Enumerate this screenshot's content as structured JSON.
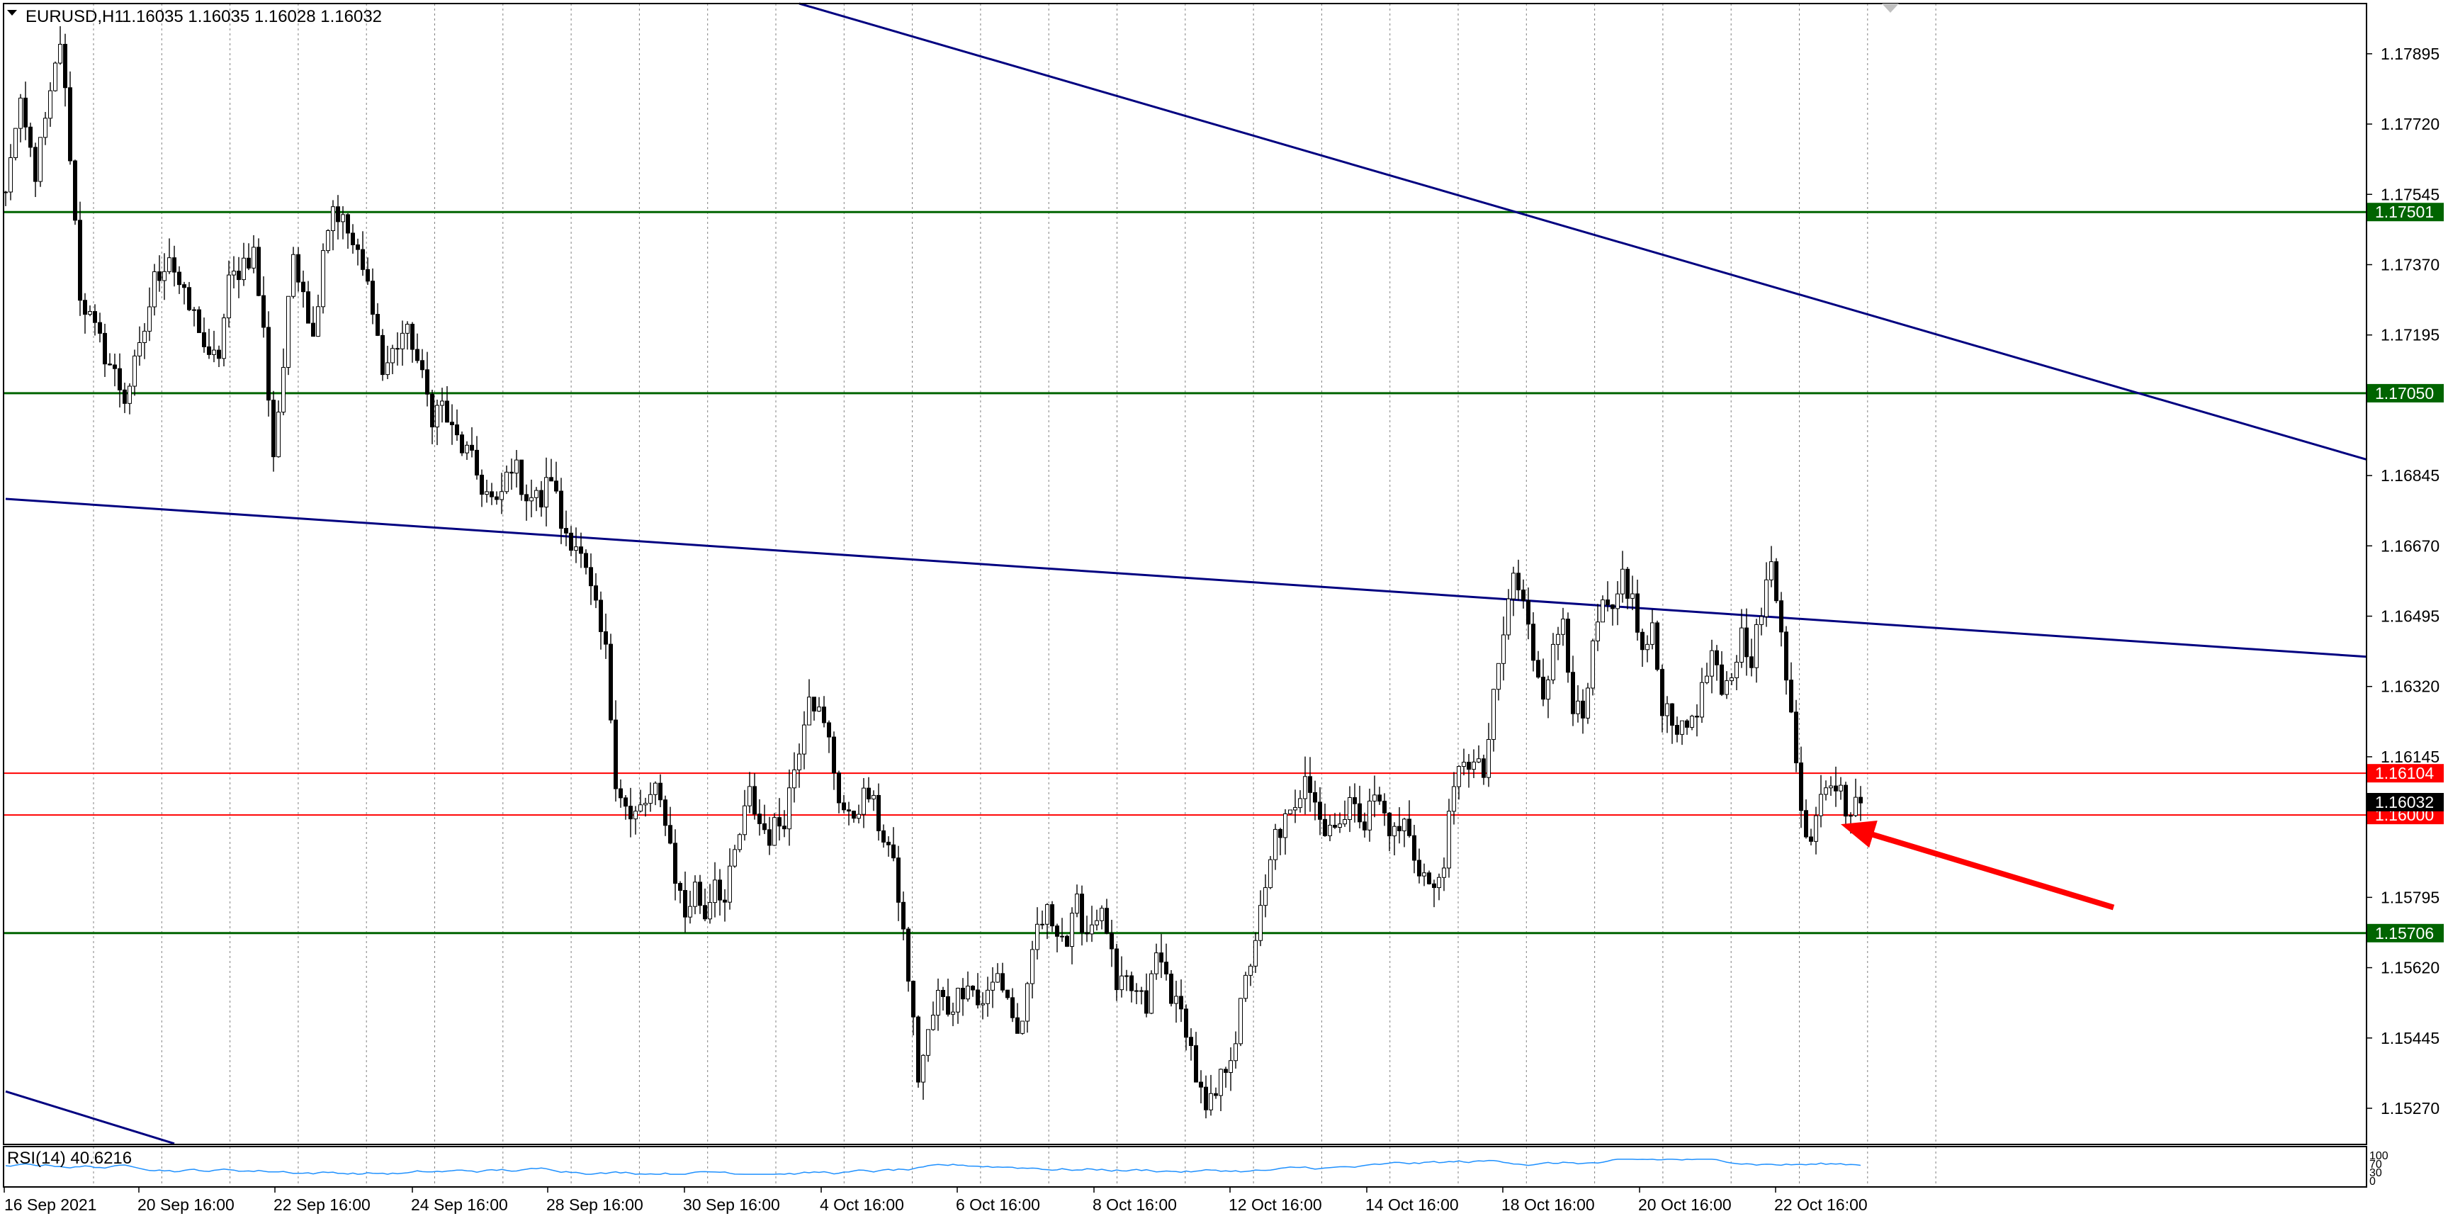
{
  "header": {
    "symbol": "EURUSD,H1",
    "ohlc": "1.16035 1.16035 1.16028 1.16032"
  },
  "rsi_label": "RSI(14) 40.6216",
  "rsi_scale": [
    "100",
    "70",
    "30",
    "0"
  ],
  "colors": {
    "support_green": "#006400",
    "red_line": "#ff0000",
    "trendline_blue": "#000080",
    "rsi_line": "#1e90ff",
    "grid": "#808080"
  },
  "chart_data": {
    "type": "candlestick",
    "timeframe": "H1",
    "ylim": [
      1.1518,
      1.1802
    ],
    "y_ticks": [
      1.17895,
      1.1772,
      1.17545,
      1.1737,
      1.17195,
      1.16845,
      1.1667,
      1.16495,
      1.1632,
      1.16145,
      1.15795,
      1.1562,
      1.15445,
      1.1527
    ],
    "x_tick_labels": [
      "16 Sep 2021",
      "20 Sep 16:00",
      "22 Sep 16:00",
      "24 Sep 16:00",
      "28 Sep 16:00",
      "30 Sep 16:00",
      "4 Oct 16:00",
      "6 Oct 16:00",
      "8 Oct 16:00",
      "12 Oct 16:00",
      "14 Oct 16:00",
      "18 Oct 16:00",
      "20 Oct 16:00",
      "22 Oct 16:00"
    ],
    "price_path": [
      [
        0,
        1.1754
      ],
      [
        1,
        1.1765
      ],
      [
        3,
        1.1775
      ],
      [
        6,
        1.176
      ],
      [
        9,
        1.1778
      ],
      [
        11,
        1.1793
      ],
      [
        13,
        1.1765
      ],
      [
        15,
        1.173
      ],
      [
        18,
        1.172
      ],
      [
        20,
        1.1715
      ],
      [
        24,
        1.1704
      ],
      [
        27,
        1.1715
      ],
      [
        30,
        1.1733
      ],
      [
        33,
        1.174
      ],
      [
        36,
        1.1728
      ],
      [
        39,
        1.1722
      ],
      [
        41,
        1.1712
      ],
      [
        43,
        1.1715
      ],
      [
        45,
        1.1732
      ],
      [
        48,
        1.1738
      ],
      [
        50,
        1.174
      ],
      [
        52,
        1.172
      ],
      [
        54,
        1.169
      ],
      [
        56,
        1.1712
      ],
      [
        58,
        1.174
      ],
      [
        60,
        1.1732
      ],
      [
        62,
        1.1718
      ],
      [
        64,
        1.1742
      ],
      [
        66,
        1.1752
      ],
      [
        69,
        1.1745
      ],
      [
        72,
        1.1735
      ],
      [
        74,
        1.1728
      ],
      [
        76,
        1.171
      ],
      [
        78,
        1.1715
      ],
      [
        80,
        1.172
      ],
      [
        82,
        1.1718
      ],
      [
        84,
        1.1708
      ],
      [
        86,
        1.17
      ],
      [
        88,
        1.1702
      ],
      [
        90,
        1.1695
      ],
      [
        93,
        1.169
      ],
      [
        96,
        1.1682
      ],
      [
        99,
        1.1676
      ],
      [
        102,
        1.1688
      ],
      [
        105,
        1.168
      ],
      [
        108,
        1.1678
      ],
      [
        110,
        1.1685
      ],
      [
        112,
        1.1672
      ],
      [
        115,
        1.1668
      ],
      [
        118,
        1.1655
      ],
      [
        121,
        1.164
      ],
      [
        123,
        1.161
      ],
      [
        126,
        1.1598
      ],
      [
        129,
        1.1603
      ],
      [
        131,
        1.1605
      ],
      [
        133,
        1.16
      ],
      [
        135,
        1.1585
      ],
      [
        137,
        1.1575
      ],
      [
        139,
        1.1582
      ],
      [
        141,
        1.1575
      ],
      [
        143,
        1.1585
      ],
      [
        145,
        1.1578
      ],
      [
        147,
        1.159
      ],
      [
        150,
        1.1605
      ],
      [
        152,
        1.1598
      ],
      [
        154,
        1.1595
      ],
      [
        157,
        1.16
      ],
      [
        160,
        1.1618
      ],
      [
        162,
        1.1632
      ],
      [
        164,
        1.1625
      ],
      [
        166,
        1.1618
      ],
      [
        168,
        1.1605
      ],
      [
        170,
        1.1598
      ],
      [
        172,
        1.1603
      ],
      [
        174,
        1.1605
      ],
      [
        176,
        1.1598
      ],
      [
        178,
        1.1592
      ],
      [
        180,
        1.158
      ],
      [
        182,
        1.156
      ],
      [
        184,
        1.1535
      ],
      [
        186,
        1.1545
      ],
      [
        188,
        1.1555
      ],
      [
        190,
        1.1552
      ],
      [
        192,
        1.1555
      ],
      [
        194,
        1.156
      ],
      [
        196,
        1.1553
      ],
      [
        198,
        1.1555
      ],
      [
        200,
        1.156
      ],
      [
        202,
        1.1555
      ],
      [
        204,
        1.1545
      ],
      [
        206,
        1.1555
      ],
      [
        208,
        1.1572
      ],
      [
        210,
        1.1575
      ],
      [
        212,
        1.1573
      ],
      [
        214,
        1.1568
      ],
      [
        216,
        1.1577
      ],
      [
        218,
        1.1571
      ],
      [
        220,
        1.1576
      ],
      [
        222,
        1.1572
      ],
      [
        224,
        1.1555
      ],
      [
        226,
        1.1558
      ],
      [
        228,
        1.1555
      ],
      [
        230,
        1.1552
      ],
      [
        232,
        1.1565
      ],
      [
        234,
        1.156
      ],
      [
        236,
        1.1552
      ],
      [
        238,
        1.1548
      ],
      [
        240,
        1.1535
      ],
      [
        242,
        1.1525
      ],
      [
        244,
        1.153
      ],
      [
        246,
        1.1538
      ],
      [
        248,
        1.1545
      ],
      [
        250,
        1.1558
      ],
      [
        252,
        1.157
      ],
      [
        254,
        1.158
      ],
      [
        256,
        1.1595
      ],
      [
        258,
        1.1598
      ],
      [
        260,
        1.16
      ],
      [
        262,
        1.1612
      ],
      [
        264,
        1.1605
      ],
      [
        266,
        1.1595
      ],
      [
        268,
        1.16
      ],
      [
        270,
        1.1598
      ],
      [
        272,
        1.1605
      ],
      [
        274,
        1.1598
      ],
      [
        276,
        1.1605
      ],
      [
        278,
        1.16
      ],
      [
        280,
        1.1595
      ],
      [
        282,
        1.1598
      ],
      [
        284,
        1.159
      ],
      [
        286,
        1.1585
      ],
      [
        288,
        1.158
      ],
      [
        290,
        1.159
      ],
      [
        292,
        1.1605
      ],
      [
        294,
        1.1615
      ],
      [
        296,
        1.1612
      ],
      [
        298,
        1.161
      ],
      [
        300,
        1.1628
      ],
      [
        302,
        1.1645
      ],
      [
        304,
        1.166
      ],
      [
        306,
        1.1652
      ],
      [
        308,
        1.164
      ],
      [
        310,
        1.1632
      ],
      [
        312,
        1.164
      ],
      [
        314,
        1.165
      ],
      [
        316,
        1.1628
      ],
      [
        318,
        1.1622
      ],
      [
        320,
        1.164
      ],
      [
        322,
        1.1652
      ],
      [
        324,
        1.1648
      ],
      [
        326,
        1.166
      ],
      [
        328,
        1.1653
      ],
      [
        330,
        1.164
      ],
      [
        332,
        1.1645
      ],
      [
        334,
        1.1628
      ],
      [
        336,
        1.1625
      ],
      [
        338,
        1.162
      ],
      [
        340,
        1.1625
      ],
      [
        342,
        1.163
      ],
      [
        344,
        1.164
      ],
      [
        346,
        1.1628
      ],
      [
        348,
        1.1635
      ],
      [
        350,
        1.1645
      ],
      [
        352,
        1.164
      ],
      [
        354,
        1.165
      ],
      [
        356,
        1.1662
      ],
      [
        358,
        1.1648
      ],
      [
        360,
        1.1625
      ],
      [
        362,
        1.16
      ],
      [
        364,
        1.1595
      ],
      [
        366,
        1.1608
      ],
      [
        368,
        1.161
      ],
      [
        370,
        1.1605
      ],
      [
        372,
        1.16
      ],
      [
        374,
        1.1603
      ]
    ],
    "horizontal_levels": [
      {
        "price": "1.17501",
        "color": "green"
      },
      {
        "price": "1.17050",
        "color": "green"
      },
      {
        "price": "1.16104",
        "color": "red"
      },
      {
        "price": "1.16000",
        "color": "red"
      },
      {
        "price": "1.15706",
        "color": "green"
      }
    ],
    "current_price": "1.16032",
    "trendlines": [
      {
        "from": [
          160,
          1.1802
        ],
        "to": [
          476,
          1.16885
        ]
      },
      {
        "from": [
          0,
          1.16787
        ],
        "to": [
          476,
          1.16394
        ]
      },
      {
        "from": [
          0,
          1.15312
        ],
        "to": [
          34,
          1.15182
        ]
      }
    ],
    "arrow": {
      "from": [
        425,
        1.1577
      ],
      "to": [
        370,
        1.15977
      ]
    },
    "rsi": {
      "value": 40.6216,
      "range": [
        0,
        100
      ]
    }
  }
}
